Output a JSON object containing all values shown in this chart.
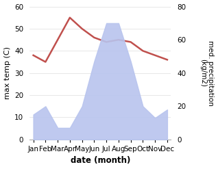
{
  "months": [
    "Jan",
    "Feb",
    "Mar",
    "Apr",
    "May",
    "Jun",
    "Jul",
    "Aug",
    "Sep",
    "Oct",
    "Nov",
    "Dec"
  ],
  "temperature": [
    38,
    35,
    45,
    55,
    50,
    46,
    44,
    45,
    44,
    40,
    38,
    36
  ],
  "precipitation": [
    15,
    20,
    7,
    7,
    20,
    47,
    70,
    70,
    47,
    20,
    13,
    18
  ],
  "temp_color": "#c0504d",
  "precip_fill_color": "#b8c4ee",
  "left_ylim": [
    0,
    60
  ],
  "right_ylim": [
    0,
    80
  ],
  "left_yticks": [
    0,
    10,
    20,
    30,
    40,
    50,
    60
  ],
  "right_yticks": [
    0,
    20,
    40,
    60,
    80
  ],
  "xlabel": "date (month)",
  "ylabel_left": "max temp (C)",
  "ylabel_right": "med. precipitation\n(kg/m2)",
  "bg_color": "#ffffff"
}
